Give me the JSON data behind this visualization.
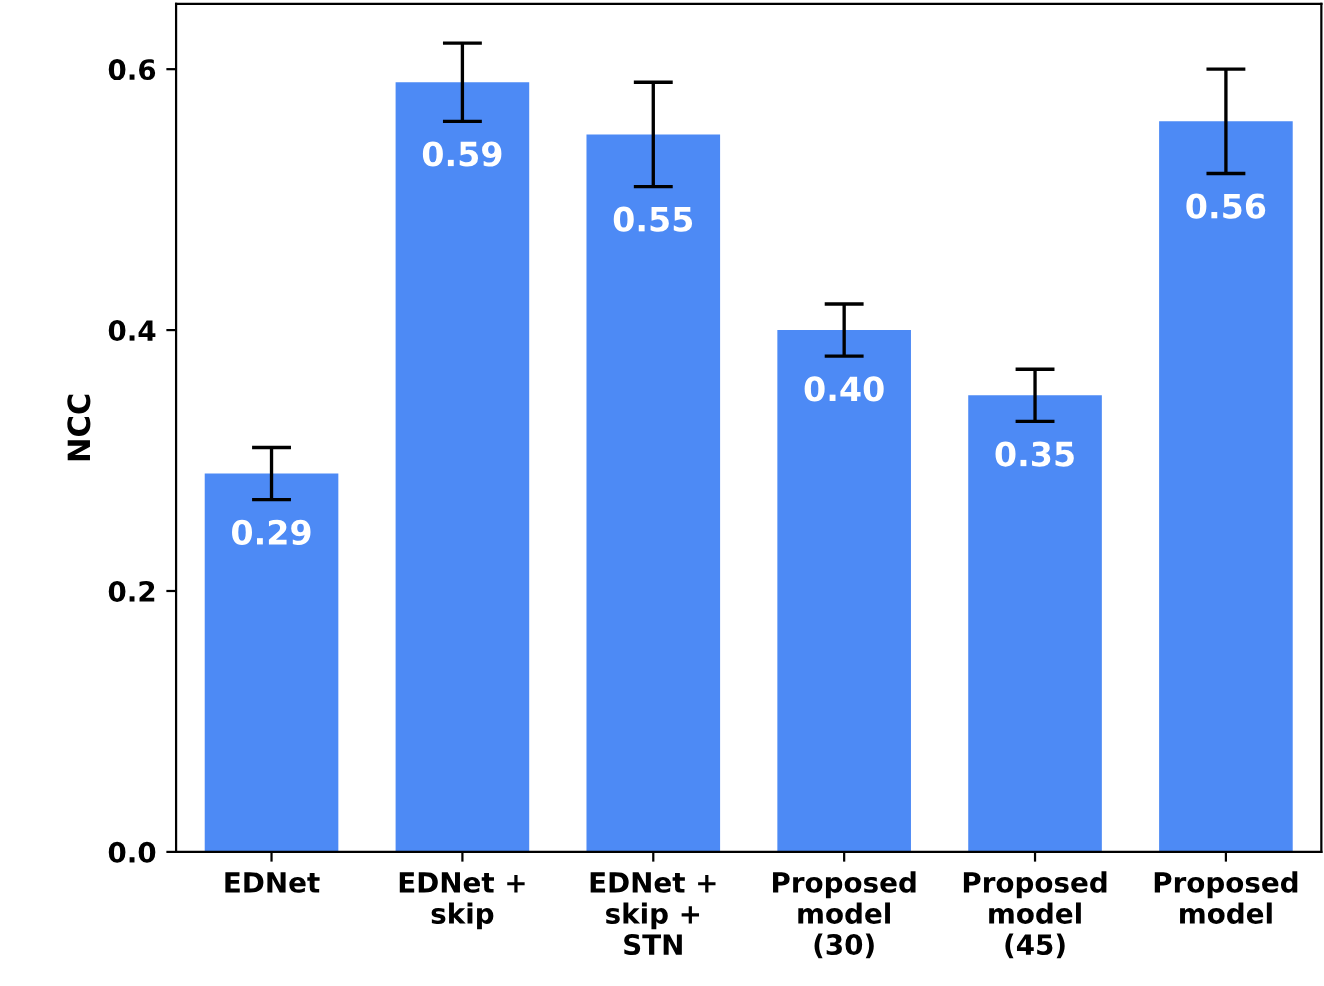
{
  "chart_data": {
    "type": "bar",
    "ylabel": "NCC",
    "categories": [
      "EDNet",
      "EDNet +\nskip",
      "EDNet +\nskip +\nSTN",
      "Proposed\nmodel\n(30)",
      "Proposed\nmodel\n(45)",
      "Proposed\nmodel"
    ],
    "values": [
      0.29,
      0.59,
      0.55,
      0.4,
      0.35,
      0.56
    ],
    "value_labels": [
      "0.29",
      "0.59",
      "0.55",
      "0.40",
      "0.35",
      "0.56"
    ],
    "errors": [
      0.02,
      0.03,
      0.04,
      0.02,
      0.02,
      0.04
    ],
    "color": "#4d8af5",
    "ylim": [
      0,
      0.65
    ],
    "yticks": [
      {
        "value": 0,
        "label": "0.0"
      },
      {
        "value": 0.2,
        "label": "0.2"
      },
      {
        "value": 0.4,
        "label": "0.4"
      },
      {
        "value": 0.6,
        "label": "0.6"
      }
    ],
    "grid": false
  }
}
